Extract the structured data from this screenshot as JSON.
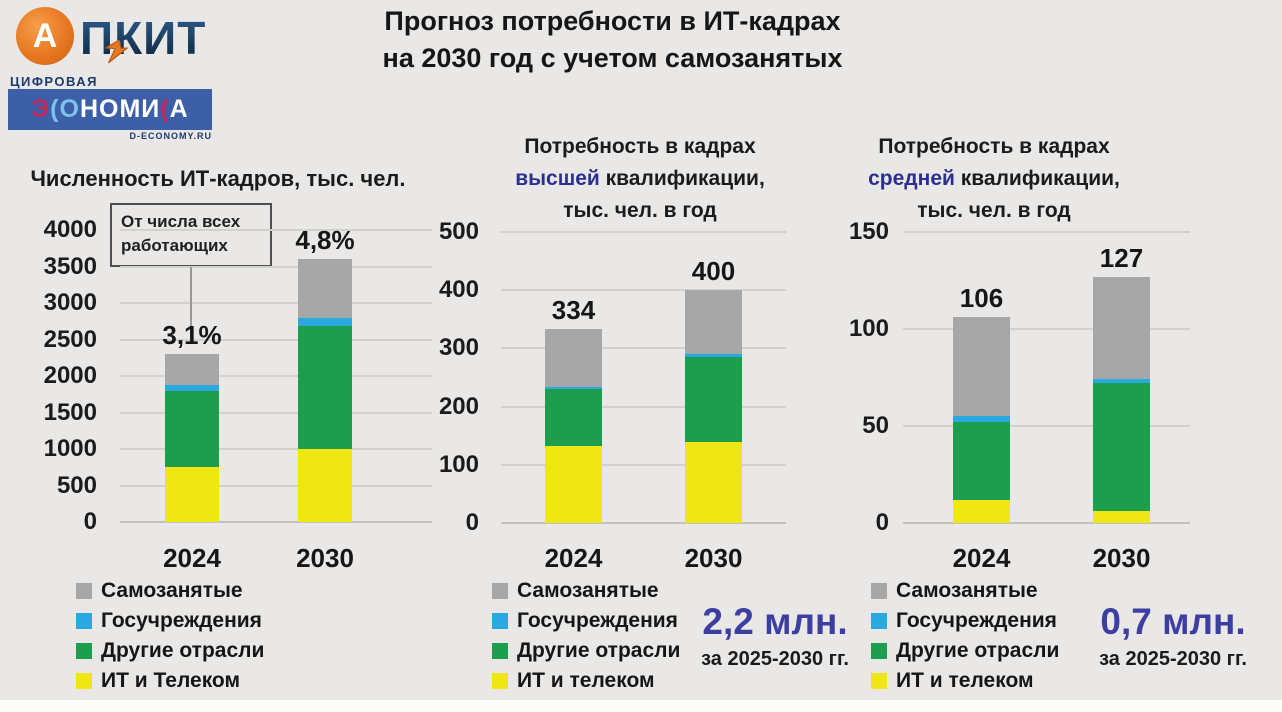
{
  "page": {
    "background": "#e9e8e6"
  },
  "logos": {
    "apkit": {
      "circle_letter": "А",
      "wordmark": "ПКИТ"
    },
    "digital_economy": {
      "caption": "ЦИФРОВАЯ",
      "brand_letters": [
        {
          "ch": "Э",
          "color": "#c32a5c"
        },
        {
          "ch": "(",
          "color": "#7cc2e9"
        },
        {
          "ch": "О",
          "color": "#7cc2e9"
        },
        {
          "ch": "Н",
          "color": "#ffffff"
        },
        {
          "ch": "О",
          "color": "#ffffff"
        },
        {
          "ch": "М",
          "color": "#ffffff"
        },
        {
          "ch": "И",
          "color": "#ffffff"
        },
        {
          "ch": "(",
          "color": "#c32a5c"
        },
        {
          "ch": "А",
          "color": "#ffffff"
        }
      ],
      "url": "D-ECONOMY.RU"
    }
  },
  "header": {
    "title_line1": "Прогноз потребности в ИТ-кадрах",
    "title_line2": "на 2030 год с учетом самозанятых"
  },
  "colors": {
    "self_employed": "#a7a7a7",
    "government": "#2aa9e1",
    "other_industries": "#1d9e4e",
    "it_telecom": "#eee714",
    "highlight_navy": "#2b2f90",
    "callout_blue": "#3d3ea1",
    "grid": "#d3d1ce",
    "zero_line": "#c3c1bf"
  },
  "annotation": {
    "line1": "От числа всех",
    "line2": "работающих"
  },
  "chart_data": [
    {
      "type": "bar",
      "stacked": true,
      "title": "Численность ИТ-кадров, тыс. чел.",
      "categories": [
        "2024",
        "2030"
      ],
      "series": [
        {
          "name": "ИТ и Телеком",
          "color_key": "it_telecom",
          "values": [
            760,
            1000
          ]
        },
        {
          "name": "Другие отрасли",
          "color_key": "other_industries",
          "values": [
            1030,
            1680
          ]
        },
        {
          "name": "Госучреждения",
          "color_key": "government",
          "values": [
            90,
            120
          ]
        },
        {
          "name": "Самозанятые",
          "color_key": "self_employed",
          "values": [
            420,
            800
          ]
        }
      ],
      "totals": [
        2300,
        3600
      ],
      "bar_labels": [
        "3,1%",
        "4,8%"
      ],
      "ylim": [
        0,
        4000
      ],
      "ytick_step": 500,
      "grid": true,
      "legend_position": "bottom",
      "legend": [
        {
          "label": "Самозанятые",
          "color_key": "self_employed"
        },
        {
          "label": "Госучреждения",
          "color_key": "government"
        },
        {
          "label": "Другие отрасли",
          "color_key": "other_industries"
        },
        {
          "label": "ИТ и Телеком",
          "color_key": "it_telecom"
        }
      ]
    },
    {
      "type": "bar",
      "stacked": true,
      "title_line1": "Потребность в кадрах",
      "title_highlight": "высшей",
      "title_line2_rest": " квалификации,",
      "title_line3": "тыс. чел. в год",
      "categories": [
        "2024",
        "2030"
      ],
      "series": [
        {
          "name": "ИТ и телеком",
          "color_key": "it_telecom",
          "values": [
            133,
            140
          ]
        },
        {
          "name": "Другие отрасли",
          "color_key": "other_industries",
          "values": [
            97,
            145
          ]
        },
        {
          "name": "Госучреждения",
          "color_key": "government",
          "values": [
            4,
            5
          ]
        },
        {
          "name": "Самозанятые",
          "color_key": "self_employed",
          "values": [
            100,
            110
          ]
        }
      ],
      "totals": [
        334,
        400
      ],
      "bar_labels": [
        "334",
        "400"
      ],
      "ylim": [
        0,
        500
      ],
      "ytick_step": 100,
      "grid": true,
      "legend_position": "bottom",
      "legend": [
        {
          "label": "Самозанятые",
          "color_key": "self_employed"
        },
        {
          "label": "Госучреждения",
          "color_key": "government"
        },
        {
          "label": "Другие отрасли",
          "color_key": "other_industries"
        },
        {
          "label": "ИТ и телеком",
          "color_key": "it_telecom"
        }
      ],
      "callout": {
        "value": "2,2 млн.",
        "period": "за 2025-2030 гг."
      }
    },
    {
      "type": "bar",
      "stacked": true,
      "title_line1": "Потребность в кадрах",
      "title_highlight": "средней",
      "title_line2_rest": " квалификации,",
      "title_line3": "тыс. чел. в год",
      "categories": [
        "2024",
        "2030"
      ],
      "series": [
        {
          "name": "ИТ и телеком",
          "color_key": "it_telecom",
          "values": [
            12,
            6
          ]
        },
        {
          "name": "Другие отрасли",
          "color_key": "other_industries",
          "values": [
            40,
            66
          ]
        },
        {
          "name": "Госучреждения",
          "color_key": "government",
          "values": [
            3,
            2
          ]
        },
        {
          "name": "Самозанятые",
          "color_key": "self_employed",
          "values": [
            51,
            53
          ]
        }
      ],
      "totals": [
        106,
        127
      ],
      "bar_labels": [
        "106",
        "127"
      ],
      "ylim": [
        0,
        150
      ],
      "ytick_step": 50,
      "grid": true,
      "legend_position": "bottom",
      "legend": [
        {
          "label": "Самозанятые",
          "color_key": "self_employed"
        },
        {
          "label": "Госучреждения",
          "color_key": "government"
        },
        {
          "label": "Другие отрасли",
          "color_key": "other_industries"
        },
        {
          "label": "ИТ и телеком",
          "color_key": "it_telecom"
        }
      ],
      "callout": {
        "value": "0,7 млн.",
        "period": "за 2025-2030 гг."
      }
    }
  ]
}
